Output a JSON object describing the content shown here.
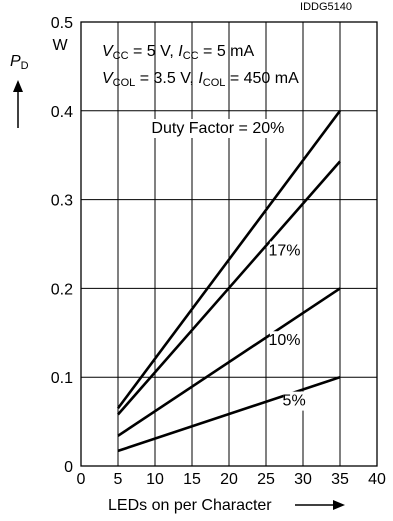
{
  "chart_data": {
    "type": "line",
    "figure_id": "IDDG5140",
    "ylabel_symbol": "P",
    "ylabel_sub": "D",
    "yunit": "W",
    "xlabel": "LEDs on per Character",
    "xlim": [
      0,
      40
    ],
    "ylim": [
      0,
      0.5
    ],
    "xticks": [
      0,
      5,
      10,
      15,
      20,
      25,
      30,
      35,
      40
    ],
    "yticks": [
      0,
      0.1,
      0.2,
      0.3,
      0.4,
      0.5
    ],
    "xtick_labels": [
      "0",
      "5",
      "10",
      "15",
      "20",
      "25",
      "30",
      "35",
      "40"
    ],
    "ytick_labels": [
      "0",
      "0.1",
      "0.2",
      "0.3",
      "0.4",
      "0.5"
    ],
    "grid": true,
    "conditions": {
      "line1": {
        "vcc_sym": "V",
        "vcc_sub": "CC",
        "vcc_val": " = 5 V, ",
        "icc_sym": "I",
        "icc_sub": "CC",
        "icc_val": " = 5 mA"
      },
      "line2": {
        "vcol_sym": "V",
        "vcol_sub": "COL",
        "vcol_val": " = 3.5 V, ",
        "icol_sym": "I",
        "icol_sub": "COL",
        "icol_val": " = 450 mA"
      }
    },
    "series": [
      {
        "name": "Duty Factor = 20%",
        "x": [
          5,
          35
        ],
        "y": [
          0.065,
          0.4
        ],
        "label_pos": [
          18.5,
          0.375
        ]
      },
      {
        "name": "17%",
        "x": [
          5,
          35
        ],
        "y": [
          0.058,
          0.343
        ],
        "label_pos": [
          27.5,
          0.237
        ]
      },
      {
        "name": "10%",
        "x": [
          5,
          35
        ],
        "y": [
          0.034,
          0.2
        ],
        "label_pos": [
          27.5,
          0.136
        ]
      },
      {
        "name": "5%",
        "x": [
          5,
          35
        ],
        "y": [
          0.017,
          0.1
        ],
        "label_pos": [
          28.8,
          0.068
        ]
      }
    ]
  }
}
